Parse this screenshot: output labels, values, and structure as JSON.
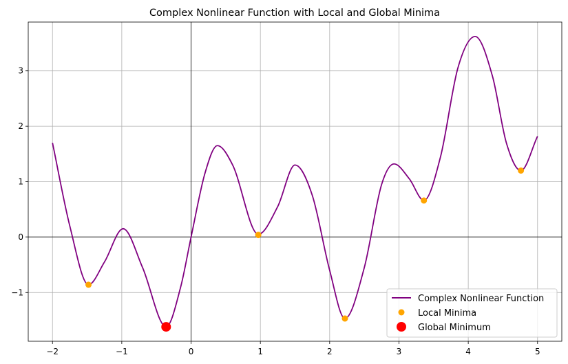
{
  "chart_data": {
    "type": "line",
    "title": "Complex Nonlinear Function with Local and Global Minima",
    "xlabel": "",
    "ylabel": "",
    "xlim": [
      -2.35,
      5.35
    ],
    "ylim": [
      -1.88,
      3.88
    ],
    "xticks": [
      -2,
      -1,
      0,
      1,
      2,
      3,
      4,
      5
    ],
    "xtick_labels": [
      "−2",
      "−1",
      "0",
      "1",
      "2",
      "3",
      "4",
      "5"
    ],
    "yticks": [
      -1,
      0,
      1,
      2,
      3
    ],
    "ytick_labels": [
      "−1",
      "0",
      "1",
      "2",
      "3"
    ],
    "grid": true,
    "reference_lines": {
      "x": 0,
      "y": 0
    },
    "legend": {
      "position": "lower-right"
    },
    "series": [
      {
        "name": "Complex Nonlinear Function",
        "kind": "line",
        "color": "#800080",
        "x": [
          -2.0,
          -1.75,
          -1.48,
          -1.25,
          -0.98,
          -0.7,
          -0.36,
          -0.15,
          0.0,
          0.2,
          0.38,
          0.6,
          0.97,
          1.25,
          1.5,
          1.75,
          2.0,
          2.22,
          2.5,
          2.75,
          2.93,
          3.15,
          3.36,
          3.6,
          3.85,
          4.1,
          4.35,
          4.55,
          4.76,
          5.0
        ],
        "y": [
          1.7,
          0.2,
          -0.86,
          -0.45,
          0.15,
          -0.55,
          -1.62,
          -0.9,
          0.0,
          1.15,
          1.65,
          1.3,
          0.05,
          0.55,
          1.3,
          0.75,
          -0.6,
          -1.47,
          -0.55,
          0.95,
          1.32,
          1.05,
          0.66,
          1.45,
          3.05,
          3.62,
          2.9,
          1.7,
          1.2,
          1.82
        ]
      },
      {
        "name": "Local Minima",
        "kind": "scatter",
        "color": "#ffa500",
        "x": [
          -1.48,
          0.97,
          2.22,
          3.36,
          4.76
        ],
        "y": [
          -0.86,
          0.04,
          -1.47,
          0.66,
          1.2
        ]
      },
      {
        "name": "Global Minimum",
        "kind": "scatter",
        "color": "#ff0000",
        "x": [
          -0.36
        ],
        "y": [
          -1.62
        ]
      }
    ]
  }
}
